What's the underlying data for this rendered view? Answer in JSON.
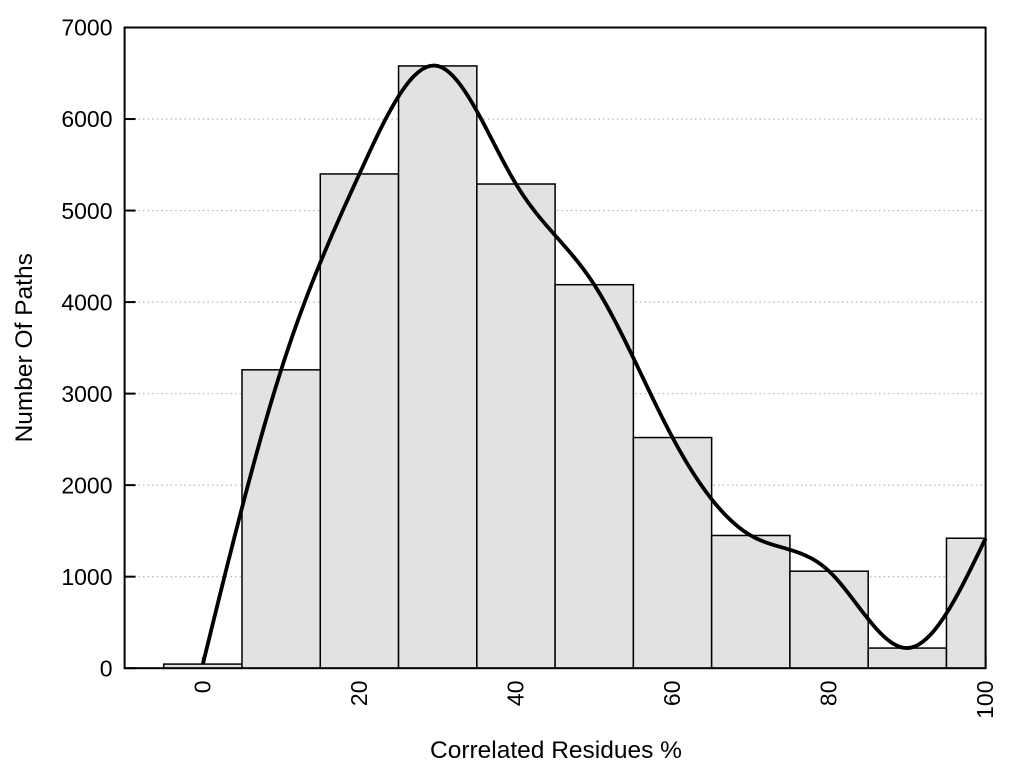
{
  "chart_data": {
    "type": "bar",
    "title": "",
    "xlabel": "Correlated Residues %",
    "ylabel": "Number Of Paths",
    "bin_width": 10,
    "bin_centers": [
      0,
      10,
      20,
      30,
      40,
      50,
      60,
      70,
      80,
      90,
      100
    ],
    "values": [
      45,
      3260,
      5400,
      6580,
      5290,
      4190,
      2520,
      1450,
      1060,
      220,
      1420
    ],
    "smooth_curve": {
      "kind": "natural-cubic-spline-through-bin-centers",
      "x": [
        0,
        10,
        20,
        30,
        40,
        50,
        60,
        70,
        80,
        90,
        100
      ],
      "y": [
        45,
        3260,
        5400,
        6580,
        5290,
        4190,
        2520,
        1450,
        1060,
        220,
        1420
      ]
    },
    "xlim": [
      -10,
      100
    ],
    "ylim": [
      0,
      7000
    ],
    "xticks": [
      0,
      20,
      40,
      60,
      80,
      100
    ],
    "yticks": [
      0,
      1000,
      2000,
      3000,
      4000,
      5000,
      6000,
      7000
    ],
    "grid": "horizontal-dotted-at-yticks",
    "legend": "none",
    "x_tick_labels_rotated_degrees": -90,
    "colors": {
      "background": "#ffffff",
      "bar_fill": "#e2e2e2",
      "bar_stroke": "#000000",
      "curve": "#000000",
      "border": "#000000",
      "tick": "#000000",
      "grid": "#b0b0b0",
      "text": "#000000"
    }
  }
}
